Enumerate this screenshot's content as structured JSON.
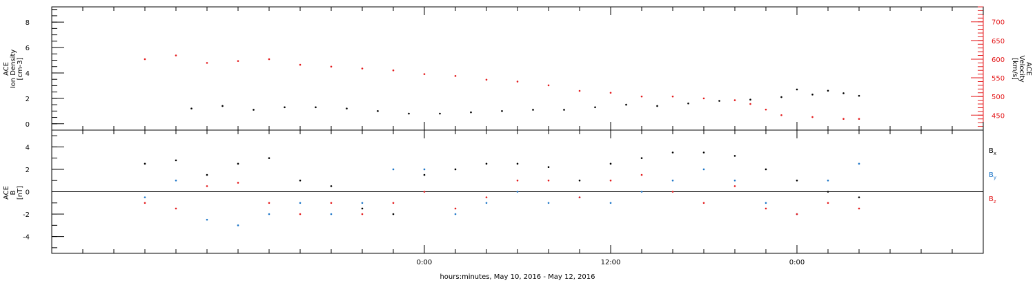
{
  "chart_data": [
    {
      "type": "scatter",
      "ylabel_left": [
        "ACE",
        "Ion Density",
        "[cm-3]"
      ],
      "ylabel_right": [
        "ACE",
        "Velocity",
        "[km/s]"
      ],
      "ylim_left": [
        -0.5,
        9.2
      ],
      "ylim_right": [
        410,
        740
      ],
      "yticks_left": [
        0,
        2,
        4,
        6,
        8
      ],
      "yticks_right": [
        450,
        500,
        550,
        600,
        650,
        700
      ],
      "grid": false,
      "series": [
        {
          "color": "#000000",
          "axis": "left",
          "points": [
            [
              -15,
              1.2
            ],
            [
              -13,
              1.4
            ],
            [
              -11,
              1.1
            ],
            [
              -9,
              1.3
            ],
            [
              -7,
              1.3
            ],
            [
              -5,
              1.2
            ],
            [
              -3,
              1.0
            ],
            [
              -1,
              0.8
            ],
            [
              1,
              0.8
            ],
            [
              3,
              0.9
            ],
            [
              5,
              1.0
            ],
            [
              7,
              1.1
            ],
            [
              9,
              1.1
            ],
            [
              11,
              1.3
            ],
            [
              13,
              1.5
            ],
            [
              15,
              1.4
            ],
            [
              17,
              1.6
            ],
            [
              19,
              1.8
            ],
            [
              21,
              1.9
            ],
            [
              23,
              2.1
            ],
            [
              24,
              2.7
            ],
            [
              25,
              2.3
            ],
            [
              26,
              2.6
            ],
            [
              27,
              2.4
            ],
            [
              28,
              2.2
            ]
          ]
        },
        {
          "color": "#e41a1c",
          "axis": "right",
          "points": [
            [
              -18,
              600
            ],
            [
              -16,
              610
            ],
            [
              -14,
              590
            ],
            [
              -12,
              595
            ],
            [
              -10,
              600
            ],
            [
              -8,
              585
            ],
            [
              -6,
              580
            ],
            [
              -4,
              575
            ],
            [
              -2,
              570
            ],
            [
              0,
              560
            ],
            [
              2,
              555
            ],
            [
              4,
              545
            ],
            [
              6,
              540
            ],
            [
              8,
              530
            ],
            [
              10,
              515
            ],
            [
              12,
              510
            ],
            [
              14,
              500
            ],
            [
              16,
              500
            ],
            [
              18,
              495
            ],
            [
              20,
              490
            ],
            [
              21,
              480
            ],
            [
              22,
              465
            ],
            [
              23,
              450
            ],
            [
              25,
              445
            ],
            [
              27,
              440
            ],
            [
              28,
              440
            ]
          ]
        }
      ]
    },
    {
      "type": "scatter",
      "ylabel": [
        "ACE",
        "B",
        "[nT]"
      ],
      "ylim": [
        -5.5,
        5.5
      ],
      "yticks": [
        -4,
        -2,
        0,
        2,
        4
      ],
      "zero_line": true,
      "grid": false,
      "legend": [
        {
          "label": "Bx",
          "base": "B",
          "sub": "x",
          "color": "#000000"
        },
        {
          "label": "By",
          "base": "B",
          "sub": "y",
          "color": "#1f77c8"
        },
        {
          "label": "Bz",
          "base": "B",
          "sub": "z",
          "color": "#e41a1c"
        }
      ],
      "series": [
        {
          "color": "#000000",
          "points": [
            [
              -18,
              2.5
            ],
            [
              -16,
              2.8
            ],
            [
              -14,
              1.5
            ],
            [
              -12,
              2.5
            ],
            [
              -10,
              3
            ],
            [
              -8,
              1
            ],
            [
              -6,
              0.5
            ],
            [
              -4,
              -1.5
            ],
            [
              -2,
              -2
            ],
            [
              0,
              1.5
            ],
            [
              2,
              2
            ],
            [
              4,
              2.5
            ],
            [
              6,
              2.5
            ],
            [
              8,
              2.2
            ],
            [
              10,
              1
            ],
            [
              12,
              2.5
            ],
            [
              14,
              3
            ],
            [
              16,
              3.5
            ],
            [
              18,
              3.5
            ],
            [
              20,
              3.2
            ],
            [
              22,
              2
            ],
            [
              24,
              1
            ],
            [
              26,
              0
            ],
            [
              28,
              -0.5
            ]
          ]
        },
        {
          "color": "#1f77c8",
          "points": [
            [
              -18,
              -0.5
            ],
            [
              -16,
              1
            ],
            [
              -14,
              -2.5
            ],
            [
              -12,
              -3
            ],
            [
              -10,
              -2
            ],
            [
              -8,
              -1
            ],
            [
              -6,
              -2
            ],
            [
              -4,
              -1
            ],
            [
              -2,
              2
            ],
            [
              0,
              2
            ],
            [
              2,
              -2
            ],
            [
              4,
              -1
            ],
            [
              6,
              0
            ],
            [
              8,
              -1
            ],
            [
              10,
              -0.5
            ],
            [
              12,
              -1
            ],
            [
              14,
              0
            ],
            [
              16,
              1
            ],
            [
              18,
              2
            ],
            [
              20,
              1
            ],
            [
              22,
              -1
            ],
            [
              24,
              -2
            ],
            [
              26,
              1
            ],
            [
              28,
              2.5
            ]
          ]
        },
        {
          "color": "#e41a1c",
          "points": [
            [
              -18,
              -1
            ],
            [
              -16,
              -1.5
            ],
            [
              -14,
              0.5
            ],
            [
              -12,
              0.8
            ],
            [
              -10,
              -1
            ],
            [
              -8,
              -2
            ],
            [
              -6,
              -1
            ],
            [
              -4,
              -2
            ],
            [
              -2,
              -1
            ],
            [
              0,
              0
            ],
            [
              2,
              -1.5
            ],
            [
              4,
              -0.5
            ],
            [
              6,
              1
            ],
            [
              8,
              1
            ],
            [
              10,
              -0.5
            ],
            [
              12,
              1
            ],
            [
              14,
              1.5
            ],
            [
              16,
              0
            ],
            [
              18,
              -1
            ],
            [
              20,
              0.5
            ],
            [
              22,
              -1.5
            ],
            [
              24,
              -2
            ],
            [
              26,
              -1
            ],
            [
              28,
              -1.5
            ]
          ]
        }
      ]
    }
  ],
  "xaxis": {
    "xlim": [
      -24,
      36
    ],
    "major_ticks": [
      0,
      12,
      24
    ],
    "major_labels": [
      "0:00",
      "12:00",
      "0:00"
    ],
    "minor_step": 2,
    "label": "hours:minutes, May 10, 2016 - May 12, 2016"
  },
  "colors": {
    "left_axis": "#000000",
    "right_axis": "#e41a1c",
    "bx": "#000000",
    "by": "#1f77c8",
    "bz": "#e41a1c"
  }
}
